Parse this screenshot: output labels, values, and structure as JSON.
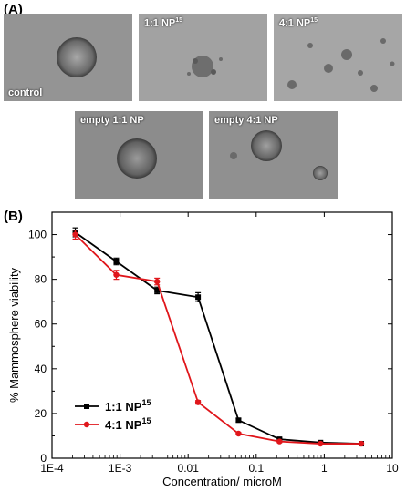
{
  "panel_a": {
    "label": "(A)",
    "tiles": [
      {
        "caption": "control",
        "sup": ""
      },
      {
        "caption": "1:1 NP",
        "sup": "15"
      },
      {
        "caption": "4:1 NP",
        "sup": "15"
      },
      {
        "caption": "empty 1:1 NP",
        "sup": ""
      },
      {
        "caption": "empty 4:1 NP",
        "sup": ""
      }
    ]
  },
  "panel_b": {
    "label": "(B)"
  },
  "chart_data": {
    "type": "line",
    "x_scale": "log",
    "xlabel": "Concentration/ microM",
    "ylabel": "% Mammosphere viability",
    "xlim": [
      0.0001,
      10
    ],
    "ylim": [
      0,
      110
    ],
    "x_tick_labels": [
      "1E-4",
      "1E-3",
      "0.01",
      "0.1",
      "1",
      "10"
    ],
    "x_tick_values": [
      0.0001,
      0.001,
      0.01,
      0.1,
      1,
      10
    ],
    "y_ticks": [
      0,
      20,
      40,
      60,
      80,
      100
    ],
    "legend_position": "bottom-left",
    "series": [
      {
        "name": "1:1 NP",
        "name_sup": "15",
        "color": "#000000",
        "marker": "square",
        "x": [
          0.00022,
          0.00088,
          0.0035,
          0.014,
          0.055,
          0.22,
          0.88,
          3.5
        ],
        "y": [
          101,
          88,
          75,
          72,
          17,
          8.5,
          7,
          6.5
        ],
        "err": [
          2,
          1.5,
          1.5,
          2,
          0.8,
          0.5,
          0.5,
          0.5
        ]
      },
      {
        "name": "4:1 NP",
        "name_sup": "15",
        "color": "#e0161b",
        "marker": "circle",
        "x": [
          0.00022,
          0.00088,
          0.0035,
          0.014,
          0.055,
          0.22,
          0.88,
          3.5
        ],
        "y": [
          100,
          82,
          79,
          25,
          11,
          7.5,
          6.5,
          6.5
        ],
        "err": [
          2,
          2,
          1.5,
          0.8,
          0.5,
          0.5,
          0.5,
          0.5
        ]
      }
    ]
  }
}
